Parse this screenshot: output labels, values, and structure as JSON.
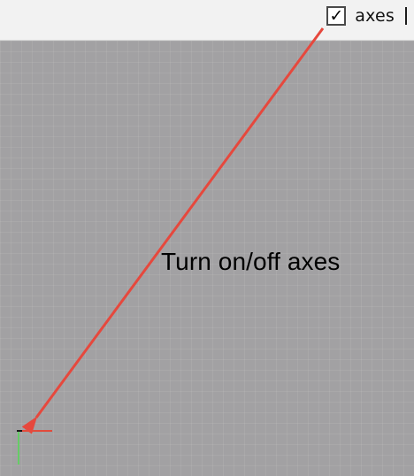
{
  "toolbar": {
    "axes_checkbox": {
      "checked": true,
      "check_glyph": "✓",
      "label": "axes"
    }
  },
  "viewport": {
    "background_color": "#a2a1a3",
    "axes_colors": {
      "x": "#e24b3c",
      "y": "#66cc66"
    }
  },
  "annotation": {
    "text": "Turn on/off axes",
    "arrow_color": "#e6483d",
    "icon": "arrow"
  }
}
